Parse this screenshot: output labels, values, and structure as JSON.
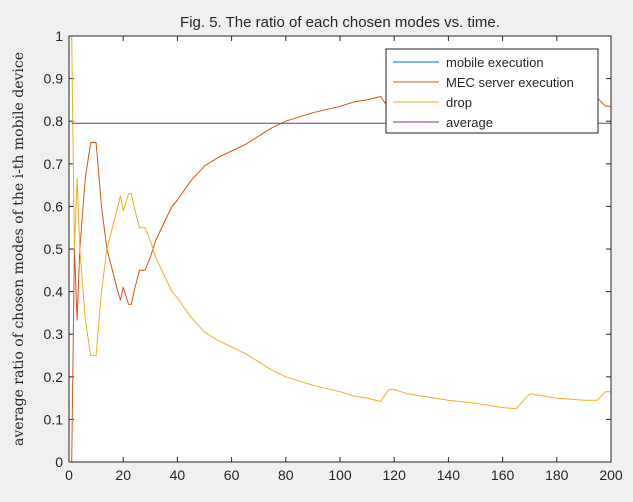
{
  "chart_data": {
    "type": "line",
    "title": "Fig. 5. The ratio of each chosen modes vs. time.",
    "xlabel": "",
    "ylabel": "average ratio of chosen modes of the i-th mobile device",
    "xlim": [
      0,
      200
    ],
    "ylim": [
      0,
      1
    ],
    "x_ticks": [
      0,
      20,
      40,
      60,
      80,
      100,
      120,
      140,
      160,
      180,
      200
    ],
    "y_ticks": [
      0,
      0.1,
      0.2,
      0.3,
      0.4,
      0.5,
      0.6,
      0.7,
      0.8,
      0.9,
      1
    ],
    "y_tick_labels": [
      "0",
      "0.1",
      "0.2",
      "0.3",
      "0.4",
      "0.5",
      "0.6",
      "0.7",
      "0.8",
      "0.9",
      "1"
    ],
    "grid": false,
    "legend_position": "top-right",
    "series": [
      {
        "name": "mobile execution",
        "color": "#0072bd",
        "x": [
          1,
          200
        ],
        "y": [
          0,
          0
        ]
      },
      {
        "name": "MEC server execution",
        "color": "#d95319",
        "x": [
          1,
          2,
          3,
          4,
          6,
          8,
          10,
          12,
          14,
          16,
          18,
          19,
          20,
          21,
          22,
          23,
          24,
          26,
          28,
          30,
          32,
          35,
          38,
          40,
          45,
          50,
          55,
          60,
          65,
          70,
          75,
          80,
          90,
          100,
          105,
          110,
          115,
          118,
          120,
          125,
          130,
          140,
          150,
          160,
          165,
          170,
          180,
          190,
          195,
          198,
          200
        ],
        "y": [
          0,
          0.5,
          0.333,
          0.5,
          0.667,
          0.75,
          0.75,
          0.6,
          0.5,
          0.45,
          0.4,
          0.38,
          0.41,
          0.39,
          0.37,
          0.37,
          0.4,
          0.45,
          0.45,
          0.48,
          0.52,
          0.56,
          0.6,
          0.615,
          0.66,
          0.695,
          0.715,
          0.73,
          0.745,
          0.765,
          0.785,
          0.8,
          0.82,
          0.835,
          0.845,
          0.85,
          0.858,
          0.83,
          0.83,
          0.84,
          0.845,
          0.855,
          0.862,
          0.872,
          0.875,
          0.84,
          0.85,
          0.855,
          0.855,
          0.835,
          0.835
        ]
      },
      {
        "name": "drop",
        "color": "#edb120",
        "x": [
          1,
          2,
          3,
          4,
          6,
          8,
          10,
          12,
          14,
          16,
          18,
          19,
          20,
          21,
          22,
          23,
          24,
          26,
          28,
          30,
          32,
          35,
          38,
          40,
          45,
          50,
          55,
          60,
          65,
          70,
          75,
          80,
          90,
          100,
          105,
          110,
          115,
          118,
          120,
          125,
          130,
          140,
          150,
          160,
          165,
          170,
          180,
          190,
          195,
          198,
          200
        ],
        "y": [
          1,
          0.5,
          0.667,
          0.5,
          0.333,
          0.25,
          0.25,
          0.4,
          0.5,
          0.55,
          0.6,
          0.625,
          0.59,
          0.61,
          0.63,
          0.63,
          0.6,
          0.55,
          0.55,
          0.52,
          0.48,
          0.44,
          0.4,
          0.385,
          0.34,
          0.305,
          0.285,
          0.27,
          0.255,
          0.235,
          0.215,
          0.2,
          0.18,
          0.165,
          0.155,
          0.15,
          0.142,
          0.17,
          0.17,
          0.16,
          0.155,
          0.145,
          0.138,
          0.128,
          0.125,
          0.16,
          0.15,
          0.145,
          0.145,
          0.165,
          0.165
        ]
      },
      {
        "name": "average",
        "color": "#7e2f8e",
        "x": [
          1,
          200
        ],
        "y": [
          0.795,
          0.795
        ]
      }
    ]
  }
}
